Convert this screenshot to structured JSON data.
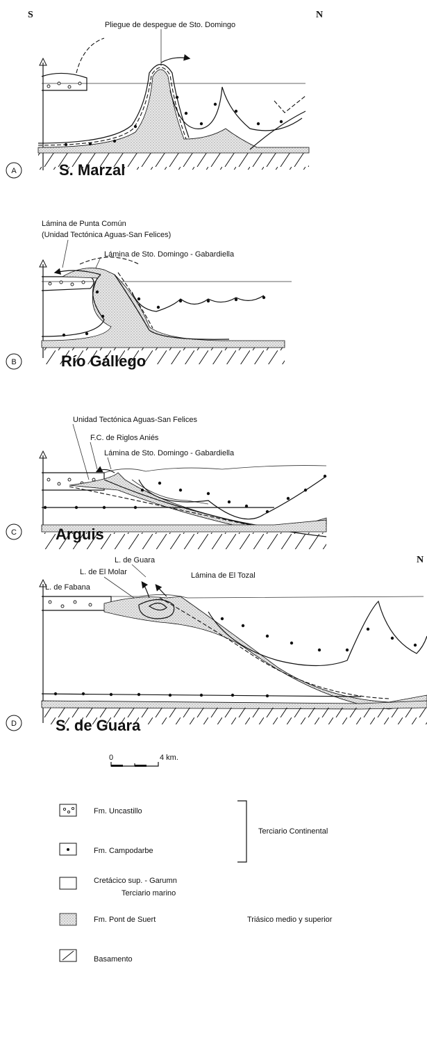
{
  "header": {
    "south": "S",
    "north": "N"
  },
  "panels": [
    {
      "letter": "A",
      "name": "S. Marzal",
      "labels": [
        "Pliegue de despegue de Sto. Domingo"
      ]
    },
    {
      "letter": "B",
      "name": "Río Gállego",
      "labels": [
        "Lámina de Punta Común",
        "(Unidad Tectónica Aguas-San Felices)",
        "Lámina de Sto. Domingo - Gabardiella"
      ]
    },
    {
      "letter": "C",
      "name": "Arguis",
      "labels": [
        "Unidad Tectónica Aguas-San Felices",
        "F.C. de Riglos Aniés",
        "Lámina de Sto. Domingo - Gabardiella"
      ]
    },
    {
      "letter": "D",
      "name": "S. de Guara",
      "north": "N",
      "labels": [
        "L. de Guara",
        "L. de El Molar",
        "Lámina de El Tozal",
        "L. de Fabana"
      ]
    }
  ],
  "scale": {
    "start": "0",
    "end": "4 km."
  },
  "legend": {
    "items": [
      "Fm. Uncastillo",
      "Fm. Campodarbe",
      "Cretácico sup. - Garumn",
      "Terciario marino",
      "Fm. Pont de Suert",
      "Basamento"
    ],
    "groups": [
      "Terciario Continental",
      "Triásico medio y superior"
    ]
  }
}
